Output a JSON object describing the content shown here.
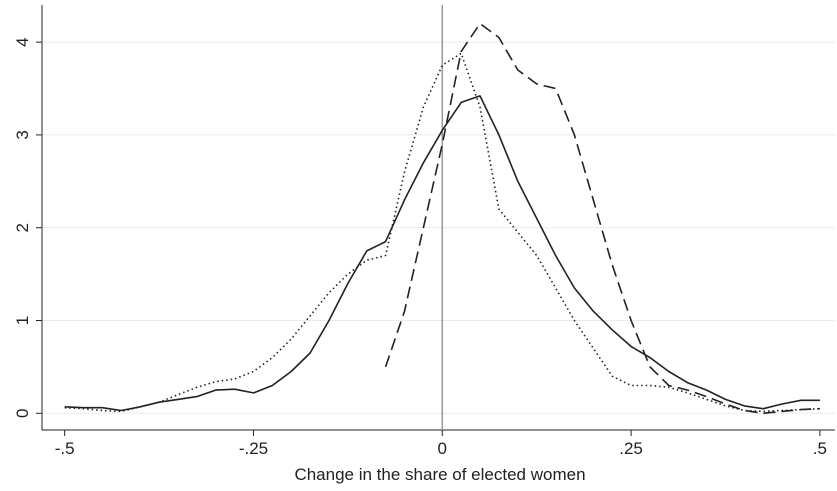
{
  "chart_data": {
    "type": "line",
    "x_label": "Change in the share of elected women",
    "x": [
      -0.5,
      -0.475,
      -0.45,
      -0.425,
      -0.4,
      -0.375,
      -0.35,
      -0.325,
      -0.3,
      -0.275,
      -0.25,
      -0.225,
      -0.2,
      -0.175,
      -0.15,
      -0.125,
      -0.1,
      -0.075,
      -0.05,
      -0.025,
      0,
      0.025,
      0.05,
      0.075,
      0.1,
      0.125,
      0.15,
      0.175,
      0.2,
      0.225,
      0.25,
      0.275,
      0.3,
      0.325,
      0.35,
      0.375,
      0.4,
      0.425,
      0.45,
      0.475,
      0.5
    ],
    "series": [
      {
        "color": "#222222",
        "dash": "solid",
        "values": [
          0.07,
          0.06,
          0.06,
          0.03,
          0.07,
          0.12,
          0.15,
          0.18,
          0.25,
          0.26,
          0.22,
          0.3,
          0.45,
          0.65,
          1.0,
          1.4,
          1.75,
          1.85,
          2.3,
          2.7,
          3.05,
          3.35,
          3.42,
          3.0,
          2.5,
          2.1,
          1.7,
          1.35,
          1.1,
          0.9,
          0.72,
          0.6,
          0.45,
          0.33,
          0.25,
          0.15,
          0.08,
          0.05,
          0.1,
          0.14,
          0.14
        ]
      },
      {
        "color": "#222222",
        "dash": "dotted",
        "values": [
          0.06,
          0.05,
          0.03,
          0.02,
          0.07,
          0.12,
          0.2,
          0.28,
          0.34,
          0.37,
          0.45,
          0.6,
          0.8,
          1.05,
          1.3,
          1.5,
          1.65,
          1.7,
          2.6,
          3.3,
          3.75,
          3.88,
          3.3,
          2.2,
          1.95,
          1.7,
          1.35,
          1.0,
          0.7,
          0.4,
          0.3,
          0.3,
          0.28,
          0.22,
          0.15,
          0.08,
          0.03,
          0.02,
          0.03,
          0.04,
          0.05
        ]
      },
      {
        "color": "#222222",
        "dash": "dashed",
        "values": [
          null,
          null,
          null,
          null,
          null,
          null,
          null,
          null,
          null,
          null,
          null,
          null,
          null,
          null,
          null,
          null,
          null,
          0.5,
          1.1,
          2.0,
          2.9,
          3.9,
          4.2,
          4.05,
          3.7,
          3.55,
          3.5,
          3.0,
          2.3,
          1.6,
          1.0,
          0.5,
          0.3,
          0.25,
          0.18,
          0.1,
          0.03,
          0.0,
          0.02,
          0.04,
          0.05
        ]
      }
    ],
    "xlim": [
      -0.53,
      0.52
    ],
    "ylim": [
      -0.18,
      4.4
    ],
    "xticks": [
      {
        "value": -0.5,
        "label": "-.5"
      },
      {
        "value": -0.25,
        "label": "-.25"
      },
      0,
      {
        "value": 0.25,
        "label": ".25"
      },
      {
        "value": 0.5,
        "label": ".5"
      }
    ],
    "yticks": [
      0,
      1,
      2,
      3,
      4
    ],
    "vline": 0,
    "grid": true
  }
}
